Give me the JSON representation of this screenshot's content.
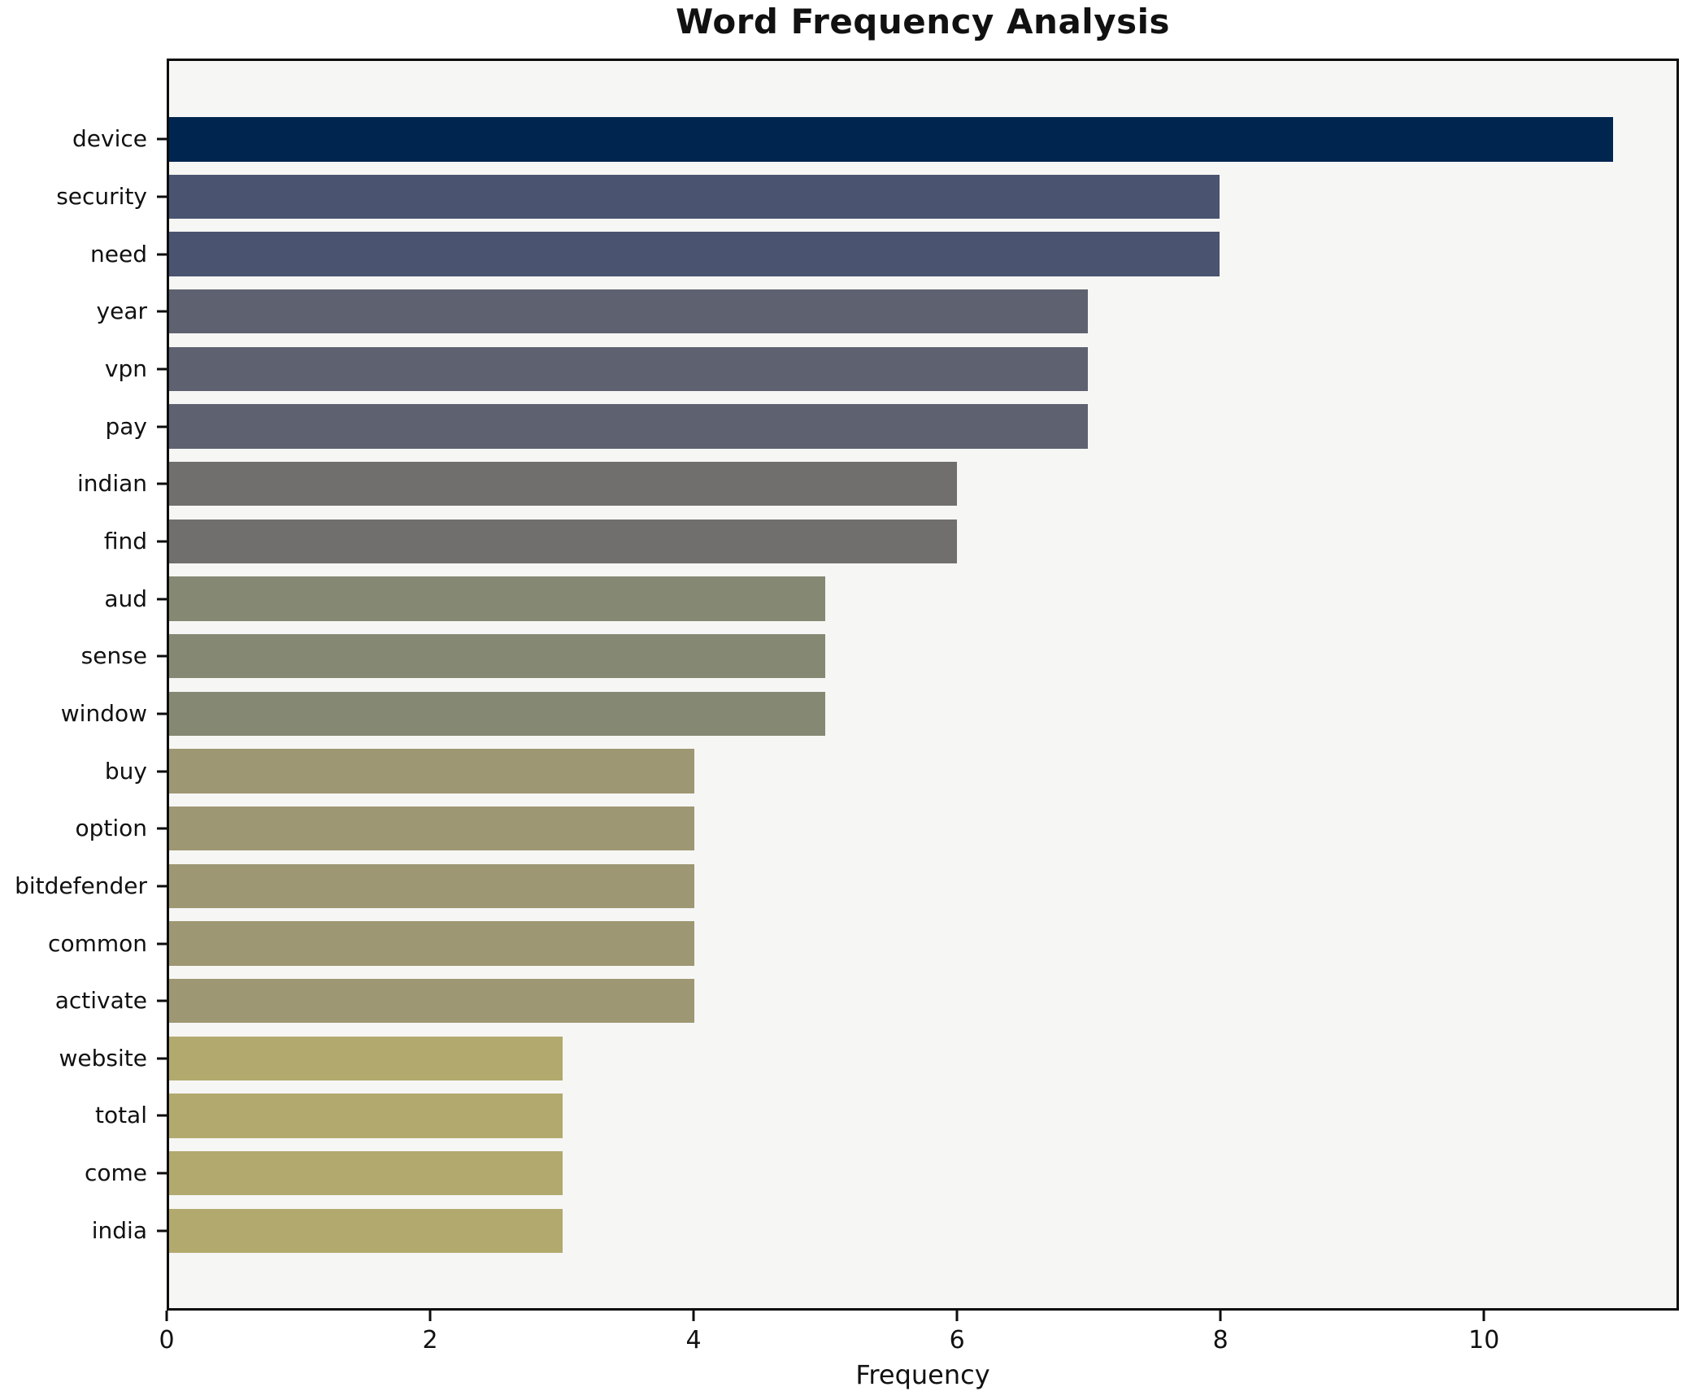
{
  "chart_data": {
    "type": "bar",
    "orientation": "horizontal",
    "title": "Word Frequency Analysis",
    "xlabel": "Frequency",
    "ylabel": "",
    "categories": [
      "device",
      "security",
      "need",
      "year",
      "vpn",
      "pay",
      "indian",
      "find",
      "aud",
      "sense",
      "window",
      "buy",
      "option",
      "bitdefender",
      "common",
      "activate",
      "website",
      "total",
      "come",
      "india"
    ],
    "values": [
      11,
      8,
      8,
      7,
      7,
      7,
      6,
      6,
      5,
      5,
      5,
      4,
      4,
      4,
      4,
      4,
      3,
      3,
      3,
      3
    ],
    "bar_colors": [
      "#00254f",
      "#4a5470",
      "#4a5470",
      "#5e6270",
      "#5e6270",
      "#5e6270",
      "#706f6e",
      "#706f6e",
      "#858873",
      "#858873",
      "#858873",
      "#9d9773",
      "#9d9773",
      "#9d9773",
      "#9d9773",
      "#9d9773",
      "#b2a96e",
      "#b2a96e",
      "#b2a96e",
      "#b2a96e"
    ],
    "xticks": [
      0,
      2,
      4,
      6,
      8,
      10
    ],
    "xlim": [
      0,
      11.48
    ],
    "grid": false,
    "legend": null,
    "plot_background": "#f6f6f4",
    "figure_background": "#ffffff",
    "spine_color": "#0d0d0d"
  }
}
